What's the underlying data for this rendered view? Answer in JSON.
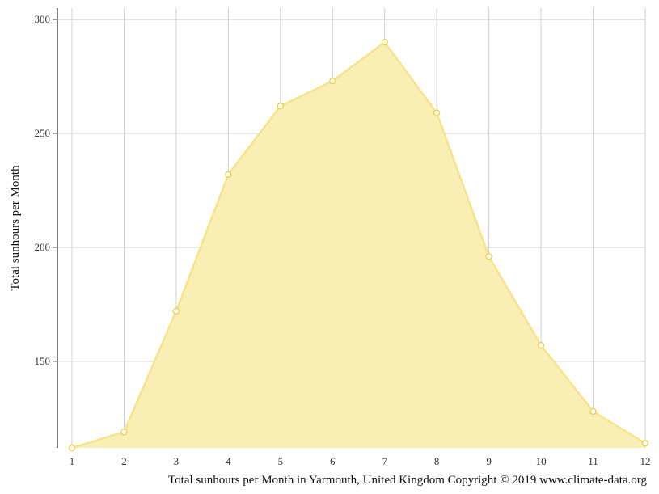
{
  "chart_data": {
    "type": "area",
    "x": [
      1,
      2,
      3,
      4,
      5,
      6,
      7,
      8,
      9,
      10,
      11,
      12
    ],
    "values": [
      112,
      119,
      172,
      232,
      262,
      273,
      290,
      259,
      196,
      157,
      128,
      114
    ],
    "ylabel": "Total sunhours per Month",
    "caption": "Total sunhours per Month in Yarmouth, United Kingdom Copyright © 2019 www.climate-data.org",
    "xticks": [
      "1",
      "2",
      "3",
      "4",
      "5",
      "6",
      "7",
      "8",
      "9",
      "10",
      "11",
      "12"
    ],
    "yticks": [
      150,
      200,
      250,
      300
    ],
    "ylim": [
      112,
      305
    ],
    "xlim": [
      1,
      12
    ],
    "grid": true,
    "colors": {
      "fill": "#f9eeb0",
      "line": "#f7e38a",
      "marker_stroke": "#f0cf3c",
      "grid": "#d0d0d0",
      "axis": "#555555"
    }
  }
}
